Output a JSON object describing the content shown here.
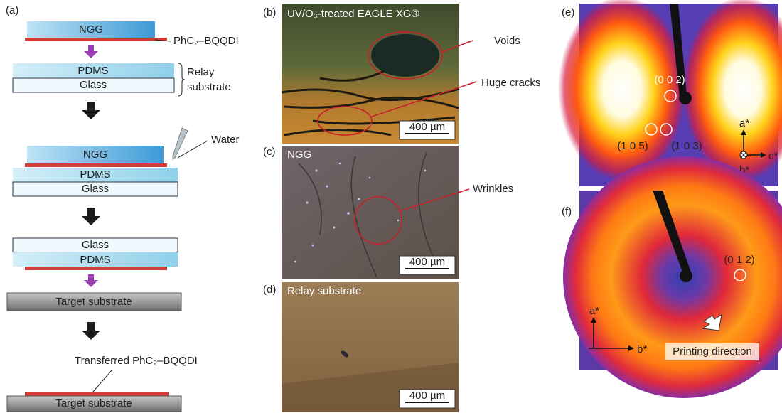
{
  "panel_a": {
    "label": "(a)",
    "top_layer": "NGG",
    "film": "PhC₂–BQQDI",
    "relay_layers": [
      "PDMS",
      "Glass"
    ],
    "relay_label": [
      "Relay",
      "substrate"
    ],
    "step3_layers": [
      "NGG",
      "PDMS",
      "Glass"
    ],
    "water": "Water",
    "step4_layers": [
      "Glass",
      "PDMS"
    ],
    "target": "Target substrate",
    "transferred": "Transferred PhC₂–BQQDI",
    "final_substrate": "Target substrate"
  },
  "panel_b": {
    "label": "(b)",
    "title": "UV/O₃-treated EAGLE XG®",
    "scale_bar": "400 µm",
    "annotations": [
      "Voids",
      "Huge cracks"
    ]
  },
  "panel_c": {
    "label": "(c)",
    "title": "NGG",
    "scale_bar": "400 µm",
    "annotations": [
      "Wrinkles"
    ]
  },
  "panel_d": {
    "label": "(d)",
    "title": "Relay substrate",
    "scale_bar": "400 µm"
  },
  "panel_e": {
    "label": "(e)",
    "peaks": [
      "(0 0 2)",
      "(1 0 5)",
      "(1 0 3)"
    ],
    "axes": [
      "a*",
      "c*",
      "b*"
    ]
  },
  "panel_f": {
    "label": "(f)",
    "peaks": [
      "(0 1 2)"
    ],
    "axes": [
      "a*",
      "b*"
    ],
    "note": "Printing direction"
  }
}
